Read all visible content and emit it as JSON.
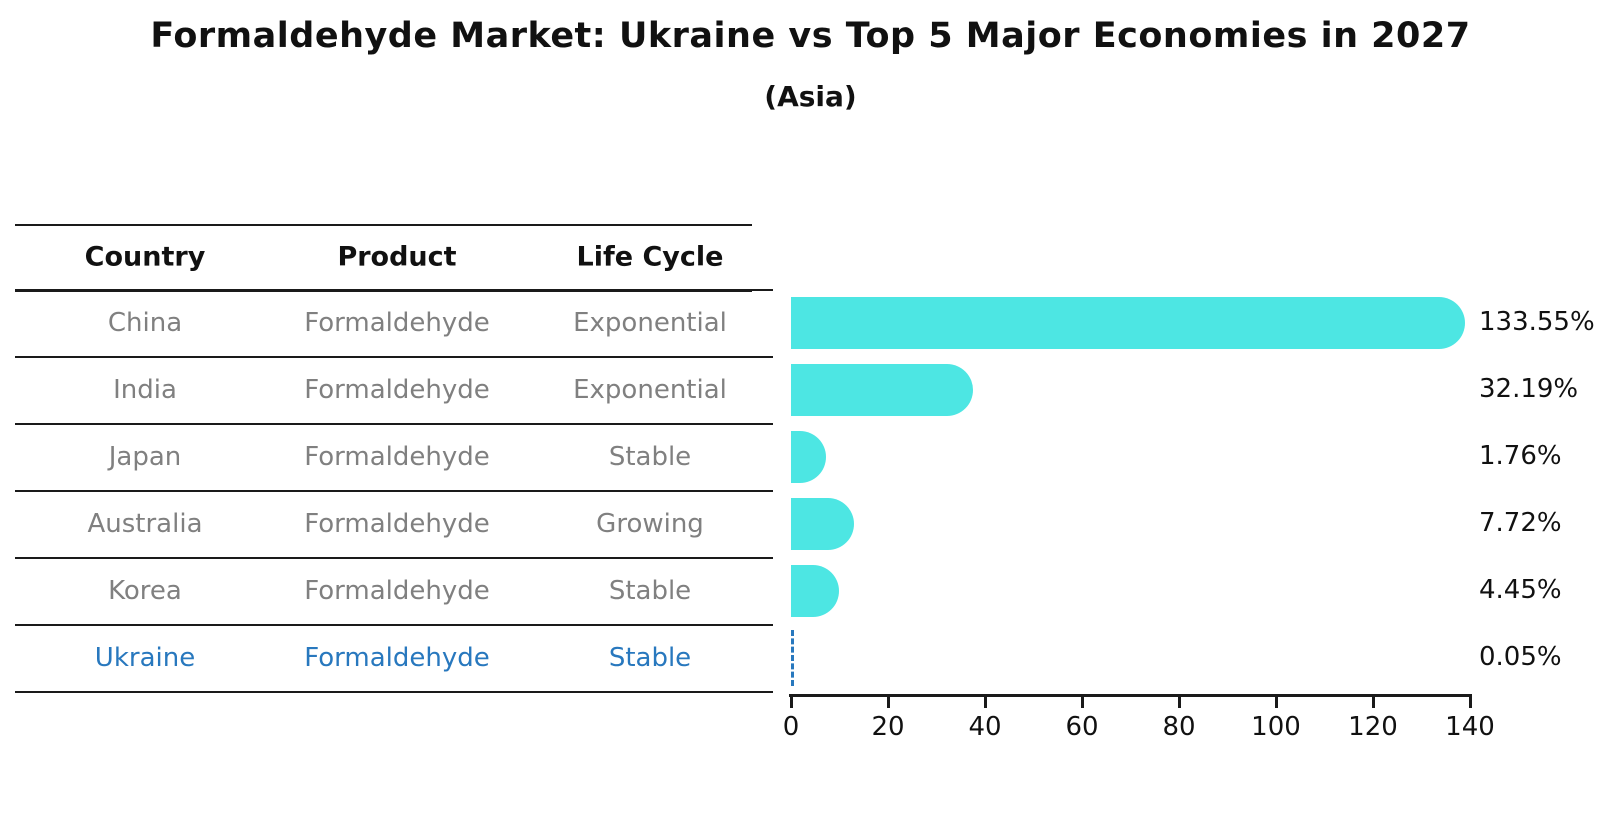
{
  "title": "Formaldehyde Market: Ukraine vs Top 5 Major Economies in 2027",
  "subtitle": "(Asia)",
  "table": {
    "columns": [
      "Country",
      "Product",
      "Life Cycle"
    ]
  },
  "chart_data": {
    "type": "bar",
    "orientation": "horizontal",
    "unit": "%",
    "xlim": [
      0,
      140
    ],
    "x_ticks": [
      0,
      20,
      40,
      60,
      80,
      100,
      120,
      140
    ],
    "grid": false,
    "legend": false,
    "categories": [
      "China",
      "India",
      "Japan",
      "Australia",
      "Korea",
      "Ukraine"
    ],
    "values": [
      133.55,
      32.19,
      1.76,
      7.72,
      4.45,
      0.05
    ],
    "rows": [
      {
        "country": "China",
        "product": "Formaldehyde",
        "life_cycle": "Exponential",
        "value": 133.55,
        "label": "133.55%",
        "highlighted": false
      },
      {
        "country": "India",
        "product": "Formaldehyde",
        "life_cycle": "Exponential",
        "value": 32.19,
        "label": "32.19%",
        "highlighted": false
      },
      {
        "country": "Japan",
        "product": "Formaldehyde",
        "life_cycle": "Stable",
        "value": 1.76,
        "label": "1.76%",
        "highlighted": false
      },
      {
        "country": "Australia",
        "product": "Formaldehyde",
        "life_cycle": "Growing",
        "value": 7.72,
        "label": "7.72%",
        "highlighted": false
      },
      {
        "country": "Korea",
        "product": "Formaldehyde",
        "life_cycle": "Stable",
        "value": 4.45,
        "label": "4.45%",
        "highlighted": false
      },
      {
        "country": "Ukraine",
        "product": "Formaldehyde",
        "life_cycle": "Stable",
        "value": 0.05,
        "label": "0.05%",
        "highlighted": true
      }
    ]
  },
  "colors": {
    "bar": "#4DE6E3",
    "highlight": "#2878BE",
    "row_text": "#808080",
    "header_text": "#111111",
    "line": "#1a1a1a"
  }
}
